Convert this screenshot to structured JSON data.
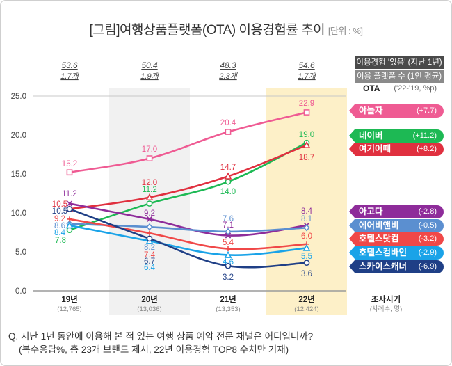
{
  "title": {
    "main": "[그림]여행상품플랫폼(OTA) 이용경험률 추이",
    "unit": "[단위 : %]"
  },
  "legend_header": {
    "row1": "이용경험 '있음' (지난 1년)",
    "row2": "이용 플랫폼 수 (1인 평균)",
    "ota_label": "OTA",
    "ota_change_label": "('22-'19, %p)"
  },
  "x_axis_label": {
    "main": "조사시기",
    "sub": "(사례수, 명)"
  },
  "footnote": {
    "line1": "Q. 지난 1년 동안에 이용해 본 적 있는 여행 상품 예약 전문 채널은 어디입니까?",
    "line2": "(복수응답%, 총 23개 브랜드 제시, 22년 이용경험 TOP8 수치만 기재)"
  },
  "chart_data": {
    "type": "line",
    "title": "[그림]여행상품플랫폼(OTA) 이용경험률 추이",
    "unit": "%",
    "xlabel": "조사시기",
    "ylabel": "",
    "ylim": [
      0,
      25
    ],
    "yticks": [
      "0.0",
      "5.0",
      "10.0",
      "15.0",
      "20.0",
      "25.0"
    ],
    "grid": false,
    "legend_position": "right",
    "categories": [
      "19년",
      "20년",
      "21년",
      "22년"
    ],
    "sample_sizes": [
      "(12,765)",
      "(13,036)",
      "(13,353)",
      "(12,424)"
    ],
    "experience_rate": [
      "53.6",
      "50.4",
      "48.3",
      "54.6"
    ],
    "platforms_per_person": [
      "1.7개",
      "1.9개",
      "2.3개",
      "1.7개"
    ],
    "highlighted_columns": [
      "20년",
      "22년"
    ],
    "series": [
      {
        "name": "야놀자",
        "change": "(+7.7)",
        "color": "#ef5b93",
        "marker": "square",
        "values": [
          15.2,
          17.0,
          20.4,
          22.9
        ],
        "labels": [
          "15.2",
          "17.0",
          "20.4",
          "22.9"
        ]
      },
      {
        "name": "네이버",
        "change": "(+11.2)",
        "color": "#1db954",
        "marker": "circle",
        "values": [
          7.8,
          11.2,
          14.0,
          19.0
        ],
        "labels": [
          "7.8",
          "11.2",
          "14.0",
          "19.0"
        ]
      },
      {
        "name": "여기어때",
        "change": "(+8.2)",
        "color": "#e0303f",
        "marker": "triangle",
        "values": [
          10.5,
          12.0,
          14.7,
          18.7
        ],
        "labels": [
          "10.5",
          "12.0",
          "14.7",
          "18.7"
        ]
      },
      {
        "name": "아고다",
        "change": "(-2.8)",
        "color": "#8e2c9a",
        "marker": "x",
        "values": [
          11.2,
          9.2,
          7.1,
          8.4
        ],
        "labels": [
          "11.2",
          "9.2",
          "7.1",
          "8.4"
        ]
      },
      {
        "name": "에어비앤비",
        "change": "(-0.5)",
        "color": "#5b8fd0",
        "marker": "diamond",
        "values": [
          8.6,
          8.2,
          7.6,
          8.1
        ],
        "labels": [
          "8.6",
          "8.2",
          "7.6",
          "8.1"
        ]
      },
      {
        "name": "호텔스닷컴",
        "change": "(-3.2)",
        "color": "#f04848",
        "marker": "plus",
        "values": [
          9.2,
          7.4,
          5.4,
          6.0
        ],
        "labels": [
          "9.2",
          "7.4",
          "5.4",
          "6.0"
        ]
      },
      {
        "name": "호텔스컴바인",
        "change": "(-2.9)",
        "color": "#1aa3e8",
        "marker": "triangle",
        "values": [
          8.4,
          6.4,
          4.6,
          5.5
        ],
        "labels": [
          "8.4",
          "6.4",
          "4.6",
          "5.5"
        ]
      },
      {
        "name": "스카이스캐너",
        "change": "(-6.9)",
        "color": "#1f3f86",
        "marker": "circle",
        "values": [
          10.5,
          6.7,
          3.2,
          3.6
        ],
        "labels": [
          "10.5",
          "6.7",
          "3.2",
          "3.6"
        ]
      }
    ]
  }
}
